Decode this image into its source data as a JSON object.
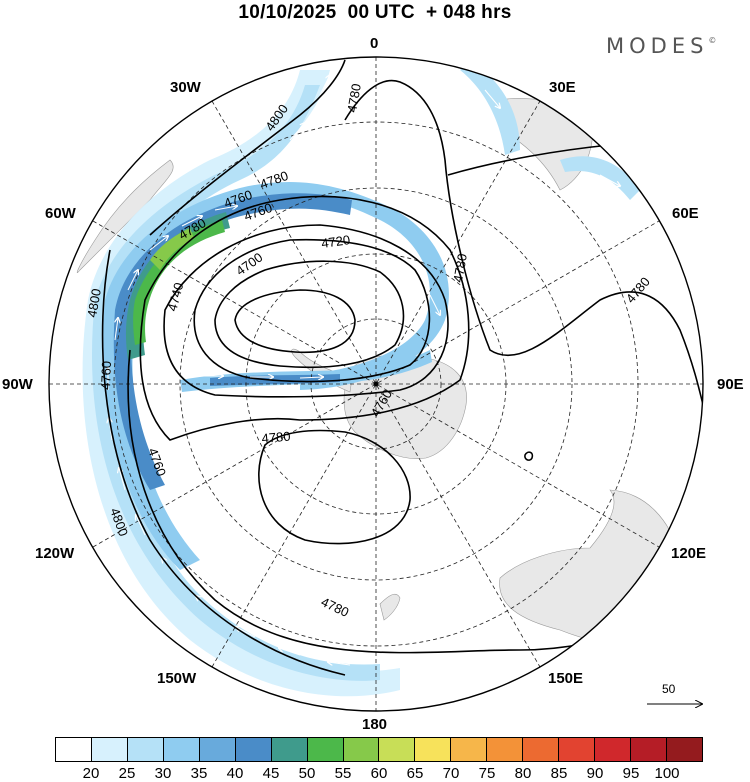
{
  "title": "10/10/2025  00 UTC  + 048 hrs",
  "brand": "MODES",
  "brand_mark": "©",
  "longitude_labels": [
    "0",
    "30E",
    "60E",
    "90E",
    "120E",
    "150E",
    "180",
    "150W",
    "120W",
    "90W",
    "60W",
    "30W"
  ],
  "contour_labels": [
    "4800",
    "4780",
    "4760",
    "4740",
    "4720",
    "4700",
    "4780",
    "4780",
    "4780",
    "4760",
    "4760",
    "4780",
    "4800",
    "4760",
    "4780",
    "4800",
    "4780",
    "4760"
  ],
  "scale_arrow_value": "50",
  "colorbar": {
    "colors": [
      "#ffffff",
      "#d7f1fd",
      "#b5e1f7",
      "#8fccf0",
      "#68aadc",
      "#4a8cc8",
      "#3f9b8c",
      "#4cb84a",
      "#86c94a",
      "#c8de57",
      "#f7e25b",
      "#f6b64a",
      "#f39238",
      "#ec6a31",
      "#e24330",
      "#d0282c",
      "#b51d26",
      "#941b1e"
    ],
    "labels": [
      "20",
      "25",
      "30",
      "35",
      "40",
      "45",
      "50",
      "55",
      "60",
      "65",
      "70",
      "75",
      "80",
      "85",
      "90",
      "95",
      "100"
    ]
  }
}
